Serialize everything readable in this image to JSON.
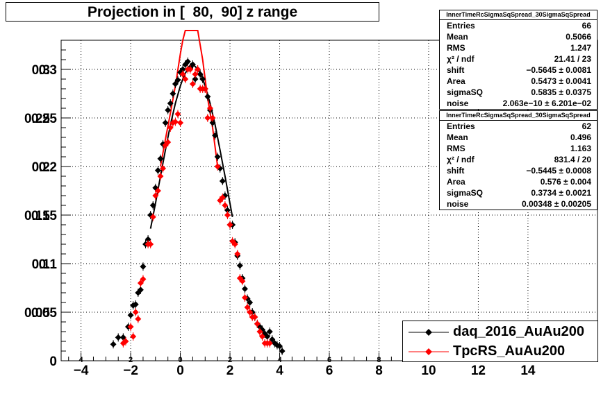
{
  "chart_data": {
    "type": "scatter",
    "title": "Projection in [  80,  90] z range",
    "xlabel": "",
    "ylabel": "",
    "xlim": [
      -4.8,
      16.8
    ],
    "ylim": [
      0,
      0.33
    ],
    "xticks": [
      -4,
      -2,
      0,
      2,
      4,
      6,
      8,
      10,
      12,
      14
    ],
    "xtick_labels": [
      "−4",
      "−2",
      "0",
      "2",
      "4",
      "6",
      "8",
      "10",
      "12",
      "14"
    ],
    "xtick_labels_minor": [
      "4",
      "2",
      "0",
      "2",
      "4",
      "6",
      "8",
      "10",
      "12",
      "14"
    ],
    "yticks": [
      0,
      0.05,
      0.1,
      0.15,
      0.2,
      0.25,
      0.3
    ],
    "ytick_labels": [
      "0",
      "0.05",
      "0.1",
      "0.15",
      "0.2",
      "0.25",
      "0.3"
    ],
    "ytick_labels_shadow": [
      "",
      "0.05",
      "0.1",
      "0.15",
      "0.2",
      "0.25",
      "0.3"
    ],
    "grid": true,
    "legend_position": "bottom-right",
    "series": [
      {
        "name": "daq_2016_AuAu200",
        "color": "#000000",
        "x": [
          -2.7,
          -2.5,
          -2.3,
          -2.1,
          -2.0,
          -1.9,
          -1.8,
          -1.7,
          -1.6,
          -1.5,
          -1.4,
          -1.3,
          -1.2,
          -1.1,
          -1.0,
          -0.9,
          -0.8,
          -0.7,
          -0.6,
          -0.5,
          -0.4,
          -0.3,
          -0.2,
          -0.1,
          0.0,
          0.1,
          0.2,
          0.3,
          0.4,
          0.5,
          0.6,
          0.7,
          0.8,
          0.9,
          1.0,
          1.1,
          1.2,
          1.3,
          1.4,
          1.5,
          1.6,
          1.7,
          1.8,
          1.9,
          2.0,
          2.1,
          2.2,
          2.3,
          2.4,
          2.5,
          2.6,
          2.7,
          2.8,
          2.9,
          3.0,
          3.1,
          3.2,
          3.3,
          3.4,
          3.5,
          3.6,
          3.7,
          3.8,
          3.9,
          4.0,
          4.1
        ],
        "y": [
          0.017,
          0.024,
          0.024,
          0.035,
          0.047,
          0.057,
          0.058,
          0.07,
          0.073,
          0.097,
          0.12,
          0.125,
          0.15,
          0.16,
          0.178,
          0.196,
          0.208,
          0.223,
          0.245,
          0.258,
          0.265,
          0.275,
          0.285,
          0.289,
          0.297,
          0.3,
          0.305,
          0.308,
          0.302,
          0.305,
          0.29,
          0.3,
          0.295,
          0.29,
          0.28,
          0.272,
          0.258,
          0.245,
          0.232,
          0.21,
          0.198,
          0.185,
          0.17,
          0.155,
          0.14,
          0.14,
          0.122,
          0.108,
          0.098,
          0.085,
          0.074,
          0.064,
          0.06,
          0.05,
          0.045,
          0.038,
          0.035,
          0.032,
          0.028,
          0.025,
          0.03,
          0.022,
          0.018,
          0.016,
          0.015,
          0.01
        ]
      },
      {
        "name": "TpcRS_AuAu200",
        "color": "#ff0000",
        "x": [
          -2.3,
          -2.2,
          -2.0,
          -1.9,
          -1.8,
          -1.7,
          -1.6,
          -1.5,
          -1.3,
          -1.2,
          -1.1,
          -1.0,
          -0.9,
          -0.8,
          -0.7,
          -0.6,
          -0.5,
          -0.4,
          -0.3,
          -0.2,
          -0.1,
          0.0,
          0.1,
          0.2,
          0.3,
          0.4,
          0.5,
          0.6,
          0.7,
          0.8,
          0.9,
          1.0,
          1.1,
          1.2,
          1.3,
          1.5,
          1.6,
          1.7,
          1.8,
          1.9,
          2.0,
          2.1,
          2.2,
          2.3,
          2.4,
          2.5,
          2.6,
          2.7,
          2.8,
          2.9,
          3.0,
          3.1,
          3.2,
          3.3,
          3.4,
          3.5,
          3.6
        ],
        "y": [
          0.018,
          0.02,
          0.035,
          0.025,
          0.05,
          0.043,
          0.08,
          0.084,
          0.12,
          0.12,
          0.148,
          0.17,
          0.175,
          0.19,
          0.198,
          0.222,
          0.225,
          0.24,
          0.245,
          0.246,
          0.254,
          0.245,
          0.295,
          0.29,
          0.3,
          0.3,
          0.285,
          0.295,
          0.3,
          0.28,
          0.28,
          0.28,
          0.25,
          0.26,
          0.25,
          0.2,
          0.165,
          0.168,
          0.16,
          0.15,
          0.14,
          0.123,
          0.12,
          0.11,
          0.085,
          0.082,
          0.065,
          0.055,
          0.05,
          0.045,
          0.045,
          0.038,
          0.03,
          0.025,
          0.018,
          0.018,
          0.018
        ]
      }
    ],
    "fits": [
      {
        "series": "daq_2016_AuAu200",
        "color": "#000000",
        "x": [
          -1.2,
          -1.0,
          -0.8,
          -0.6,
          -0.4,
          -0.2,
          0.0,
          0.1,
          0.2,
          0.3,
          0.4,
          0.5,
          0.6,
          0.7,
          0.8,
          0.9,
          1.0,
          1.2,
          1.4,
          1.6,
          1.8,
          2.0,
          2.1
        ],
        "y": [
          0.136,
          0.162,
          0.19,
          0.217,
          0.243,
          0.265,
          0.283,
          0.29,
          0.296,
          0.3,
          0.304,
          0.305,
          0.303,
          0.3,
          0.296,
          0.29,
          0.283,
          0.265,
          0.243,
          0.217,
          0.19,
          0.162,
          0.148
        ]
      },
      {
        "series": "TpcRS_AuAu200",
        "color": "#ff0000",
        "x": [
          -0.8,
          -0.6,
          -0.4,
          -0.2,
          0.0,
          0.1,
          0.2,
          0.7,
          0.9,
          1.0,
          1.1,
          1.3,
          1.5
        ],
        "y": [
          0.2,
          0.228,
          0.255,
          0.283,
          0.316,
          0.33,
          0.34,
          0.34,
          0.31,
          0.29,
          0.27,
          0.24,
          0.2
        ]
      }
    ]
  },
  "stats": [
    {
      "header": "InnerTimeRcSigmaSqSpread_30SigmaSqSpread",
      "rows": [
        {
          "label": "Entries",
          "value": "66"
        },
        {
          "label": "Mean",
          "value": "0.5066"
        },
        {
          "label": "RMS",
          "value": "1.247"
        },
        {
          "label": "χ² / ndf",
          "value": "21.41 / 23"
        },
        {
          "label": "shift",
          "value": "−0.5645 ± 0.0081"
        },
        {
          "label": "Area",
          "value": "0.5473 ± 0.0041"
        },
        {
          "label": "sigmaSQ",
          "value": "0.5835 ± 0.0375"
        },
        {
          "label": "noise",
          "value": "2.063e−10 ± 6.201e−02"
        }
      ]
    },
    {
      "header": "InnerTimeRcSigmaSqSpread_30SigmaSqSpread",
      "rows": [
        {
          "label": "Entries",
          "value": "62"
        },
        {
          "label": "Mean",
          "value": "0.496"
        },
        {
          "label": "RMS",
          "value": "1.163"
        },
        {
          "label": "χ² / ndf",
          "value": "831.4 / 20"
        },
        {
          "label": "shift",
          "value": "−0.5445 ± 0.0008"
        },
        {
          "label": "Area",
          "value": "0.576 ± 0.004"
        },
        {
          "label": "sigmaSQ",
          "value": "0.3734 ± 0.0021"
        },
        {
          "label": "noise",
          "value": "0.00348 ± 0.00205"
        }
      ]
    }
  ]
}
